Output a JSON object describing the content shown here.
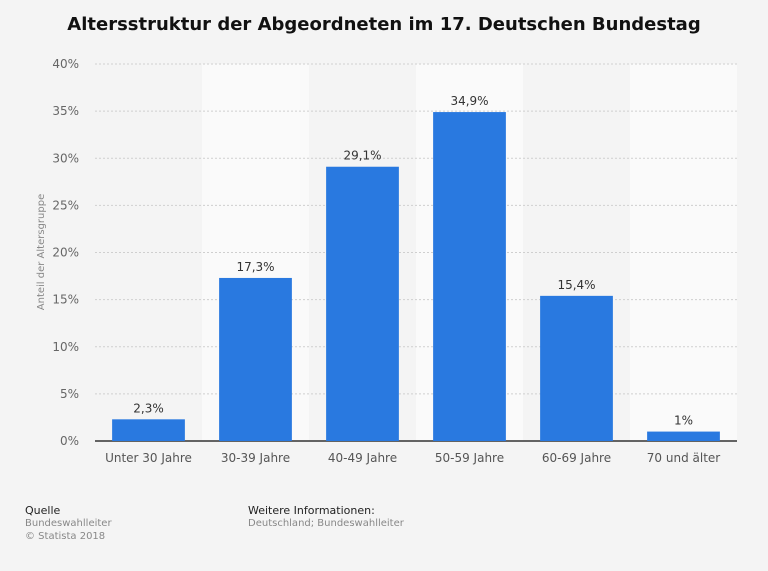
{
  "chart_data": {
    "type": "bar",
    "title": "Altersstruktur der Abgeordneten im 17. Deutschen Bundestag",
    "ylabel": "Anteil der Altersgruppe",
    "xlabel": "",
    "categories": [
      "Unter 30 Jahre",
      "30-39 Jahre",
      "40-49 Jahre",
      "50-59 Jahre",
      "60-69 Jahre",
      "70 und älter"
    ],
    "values": [
      2.3,
      17.3,
      29.1,
      34.9,
      15.4,
      1
    ],
    "value_labels": [
      "2,3%",
      "17,3%",
      "29,1%",
      "34,9%",
      "15,4%",
      "1%"
    ],
    "ylim": [
      0,
      40
    ],
    "yticks": [
      0,
      5,
      10,
      15,
      20,
      25,
      30,
      35,
      40
    ],
    "ytick_labels": [
      "0%",
      "5%",
      "10%",
      "15%",
      "20%",
      "25%",
      "30%",
      "35%",
      "40%"
    ],
    "grid": true,
    "bar_color": "#2979e0"
  },
  "footer": {
    "source_heading": "Quelle",
    "source_name": "Bundeswahlleiter",
    "copyright": "© Statista 2018",
    "info_heading": "Weitere Informationen:",
    "info_text": "Deutschland; Bundeswahlleiter"
  }
}
